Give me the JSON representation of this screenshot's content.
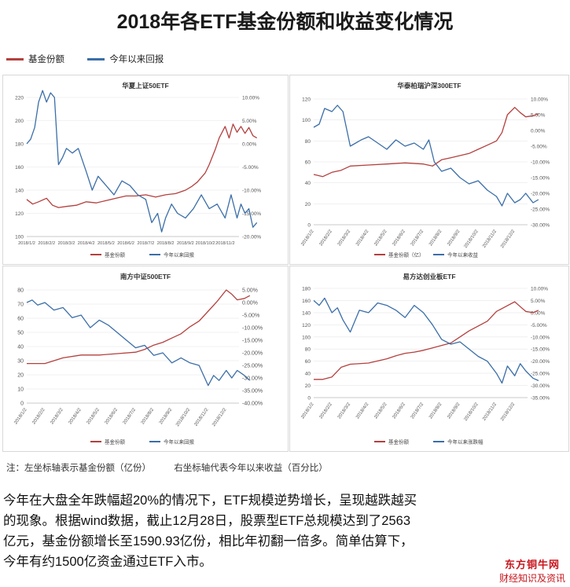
{
  "title": "2018年各ETF基金份额和收益变化情况",
  "legend": {
    "share_label": "基金份额",
    "return_label": "今年以来回报"
  },
  "colors": {
    "share": "#b3403e",
    "return": "#3b6ea8",
    "grid": "#e6e6e6",
    "axis": "#8a8a8a"
  },
  "note": {
    "left": "注：左坐标轴表示基金份额（亿份）",
    "right": "右坐标轴代表今年以来收益（百分比）"
  },
  "paragraph": [
    "今年在大盘全年跌幅超20%的情况下，ETF规模逆势增长，呈现越跌越买",
    "的现象。根据wind数据，截止12月28日，股票型ETF总规模达到了2563",
    "亿元，基金份额增长至1590.93亿份，相比年初翻一倍多。简单估算下，",
    "今年有约1500亿资金通过ETF入市。"
  ],
  "brand": {
    "name": "东方铜牛网",
    "tagline": "财经知识及资讯"
  },
  "chart_data": [
    {
      "type": "line",
      "title": "华夏上证50ETF",
      "left_ticks": [
        "220",
        "200",
        "180",
        "160",
        "140",
        "120",
        "100"
      ],
      "left_range": [
        100,
        220
      ],
      "right_ticks": [
        "10.00%",
        "5.00%",
        "0.00%",
        "-5.00%",
        "-10.00%",
        "-15.00%",
        "-20.00%"
      ],
      "right_range": [
        -20,
        10
      ],
      "x_ticks": [
        "2018/1/2",
        "2018/2/2",
        "2018/3/2",
        "2018/4/2",
        "2018/5/2",
        "2018/6/2",
        "2018/7/2",
        "2018/8/2",
        "2018/9/2",
        "2018/10/2",
        "2018/11/2"
      ],
      "x_rotated": false,
      "legend": [
        "基金份额",
        "今年以来回报"
      ],
      "series": [
        {
          "name": "基金份额",
          "axis": "left",
          "x": [
            0,
            0.3,
            0.6,
            1,
            1.3,
            1.6,
            2,
            2.5,
            3,
            3.5,
            4,
            4.5,
            5,
            5.5,
            6,
            6.5,
            7,
            7.5,
            8,
            8.3,
            8.6,
            9,
            9.2,
            9.5,
            9.7,
            10,
            10.2,
            10.4,
            10.6,
            10.8,
            11,
            11.2,
            11.4,
            11.6
          ],
          "values": [
            132,
            128,
            130,
            133,
            127,
            125,
            126,
            127,
            130,
            129,
            131,
            133,
            135,
            135,
            136,
            134,
            136,
            137,
            140,
            143,
            147,
            155,
            162,
            175,
            185,
            195,
            185,
            197,
            190,
            195,
            189,
            194,
            187,
            185
          ]
        },
        {
          "name": "今年以来回报",
          "axis": "right",
          "x": [
            0,
            0.2,
            0.4,
            0.6,
            0.8,
            1,
            1.2,
            1.4,
            1.6,
            1.8,
            2,
            2.3,
            2.6,
            3,
            3.3,
            3.6,
            4,
            4.4,
            4.8,
            5.2,
            5.6,
            6,
            6.3,
            6.6,
            6.8,
            7,
            7.3,
            7.6,
            8,
            8.4,
            8.8,
            9.2,
            9.6,
            10,
            10.3,
            10.6,
            10.8,
            11,
            11.2,
            11.4,
            11.6
          ],
          "values": [
            0,
            1,
            3.5,
            9,
            11.5,
            9,
            11,
            10,
            -4.5,
            -3,
            -1,
            -2,
            -1,
            -6,
            -10,
            -7,
            -9,
            -11,
            -8,
            -9,
            -11,
            -12,
            -17,
            -15,
            -19,
            -16,
            -13,
            -15,
            -16,
            -14,
            -11,
            -14,
            -13,
            -16,
            -11,
            -16,
            -13,
            -15,
            -14,
            -18,
            -17
          ]
        }
      ]
    },
    {
      "type": "line",
      "title": "华泰柏瑞沪深300ETF",
      "left_ticks": [
        "120",
        "100",
        "80",
        "60",
        "40",
        "20",
        "0"
      ],
      "left_range": [
        0,
        120
      ],
      "right_ticks": [
        "10.00%",
        "5.00%",
        "0.00%",
        "-5.00%",
        "-10.00%",
        "-15.00%",
        "-20.00%",
        "-25.00%",
        "-30.00%"
      ],
      "right_range": [
        -30,
        10
      ],
      "x_ticks": [
        "2018/1/2",
        "2018/2/2",
        "2018/3/2",
        "2018/4/2",
        "2018/5/2",
        "2018/6/2",
        "2018/7/2",
        "2018/8/2",
        "2018/9/2",
        "2018/10/2",
        "2018/11/2",
        "2018/12/2"
      ],
      "x_rotated": true,
      "legend": [
        "基金份额（亿）",
        "今年以来收益"
      ],
      "series": [
        {
          "name": "基金份额（亿）",
          "axis": "left",
          "x": [
            0,
            0.5,
            1,
            1.5,
            2,
            3,
            4,
            5,
            6,
            6.5,
            7,
            7.5,
            8,
            8.5,
            9,
            9.5,
            10,
            10.3,
            10.6,
            11,
            11.3,
            11.6,
            12,
            12.3
          ],
          "values": [
            48,
            46,
            50,
            52,
            56,
            57,
            58,
            59,
            58,
            56,
            62,
            64,
            66,
            68,
            72,
            76,
            80,
            88,
            105,
            112,
            107,
            103,
            104,
            106
          ]
        },
        {
          "name": "今年以来收益",
          "axis": "right",
          "x": [
            0,
            0.3,
            0.6,
            1,
            1.3,
            1.6,
            2,
            2.3,
            2.6,
            3,
            3.5,
            4,
            4.5,
            5,
            5.5,
            6,
            6.3,
            6.6,
            7,
            7.5,
            8,
            8.5,
            9,
            9.5,
            10,
            10.3,
            10.6,
            11,
            11.3,
            11.6,
            12,
            12.3
          ],
          "values": [
            1,
            2,
            7,
            6,
            8,
            6,
            -5,
            -4,
            -3,
            -2,
            -4,
            -6,
            -3,
            -5,
            -4,
            -6,
            -3,
            -10,
            -13,
            -12,
            -15,
            -17,
            -16,
            -19,
            -21,
            -24,
            -20,
            -23,
            -22,
            -20,
            -23,
            -22
          ]
        }
      ]
    },
    {
      "type": "line",
      "title": "南方中证500ETF",
      "left_ticks": [
        "80",
        "70",
        "60",
        "50",
        "40",
        "30",
        "20",
        "10",
        "0"
      ],
      "left_range": [
        0,
        80
      ],
      "right_ticks": [
        "5.00%",
        "0.00%",
        "-5.00%",
        "-10.00%",
        "-15.00%",
        "-20.00%",
        "-25.00%",
        "-30.00%",
        "-35.00%",
        "-40.00%"
      ],
      "right_range": [
        -40,
        5
      ],
      "x_ticks": [
        "2018/1/2",
        "2018/2/2",
        "2018/3/2",
        "2018/4/2",
        "2018/5/2",
        "2018/6/2",
        "2018/7/2",
        "2018/8/2",
        "2018/9/2",
        "2018/10/2",
        "2018/11/2",
        "2018/12/2"
      ],
      "x_rotated": true,
      "legend": [
        "基金份额",
        "今年以来回报"
      ],
      "series": [
        {
          "name": "基金份额",
          "axis": "left",
          "x": [
            0,
            1,
            2,
            3,
            4,
            5,
            6,
            6.5,
            7,
            7.5,
            8,
            8.5,
            9,
            9.5,
            10,
            10.5,
            11,
            11.3,
            11.6,
            12,
            12.3
          ],
          "values": [
            28,
            28,
            32,
            34,
            34,
            35,
            36,
            38,
            41,
            43,
            46,
            49,
            54,
            58,
            65,
            72,
            80,
            77,
            73,
            74,
            76
          ]
        },
        {
          "name": "今年以来回报",
          "axis": "right",
          "x": [
            0,
            0.3,
            0.6,
            1,
            1.5,
            2,
            2.5,
            3,
            3.5,
            4,
            4.5,
            5,
            5.5,
            6,
            6.5,
            7,
            7.5,
            8,
            8.5,
            9,
            9.5,
            10,
            10.3,
            10.6,
            11,
            11.3,
            11.6,
            12,
            12.3
          ],
          "values": [
            0,
            1,
            -1,
            0,
            -3,
            -2,
            -6,
            -5,
            -10,
            -7,
            -9,
            -12,
            -15,
            -18,
            -17,
            -21,
            -20,
            -24,
            -22,
            -24,
            -25,
            -33,
            -29,
            -31,
            -27,
            -30,
            -27,
            -29,
            -31
          ]
        }
      ]
    },
    {
      "type": "line",
      "title": "易方达创业板ETF",
      "left_ticks": [
        "180",
        "160",
        "140",
        "120",
        "100",
        "80",
        "60",
        "40",
        "20",
        "0"
      ],
      "left_range": [
        0,
        180
      ],
      "right_ticks": [
        "10.00%",
        "5.00%",
        "0.00%",
        "-5.00%",
        "-10.00%",
        "-15.00%",
        "-20.00%",
        "-25.00%",
        "-30.00%",
        "-35.00%"
      ],
      "right_range": [
        -35,
        10
      ],
      "x_ticks": [
        "2018/1/2",
        "2018/2/2",
        "2018/3/2",
        "2018/4/2",
        "2018/5/2",
        "2018/6/2",
        "2018/7/2",
        "2018/8/2",
        "2018/9/2",
        "2018/10/2",
        "2018/11/2",
        "2018/12/2"
      ],
      "x_rotated": true,
      "legend": [
        "基金份额",
        "今年以来涨跌幅"
      ],
      "series": [
        {
          "name": "基金份额",
          "axis": "left",
          "x": [
            0,
            0.5,
            1,
            1.5,
            2,
            3,
            4,
            4.5,
            5,
            5.5,
            6,
            6.5,
            7,
            7.5,
            8,
            8.5,
            9,
            9.5,
            10,
            10.5,
            11,
            11.3,
            11.6,
            12,
            12.3
          ],
          "values": [
            30,
            30,
            34,
            50,
            55,
            57,
            64,
            69,
            73,
            75,
            78,
            82,
            86,
            90,
            100,
            110,
            118,
            126,
            142,
            150,
            158,
            150,
            142,
            140,
            144
          ]
        },
        {
          "name": "今年以来涨跌幅",
          "axis": "right",
          "x": [
            0,
            0.3,
            0.6,
            1,
            1.3,
            1.6,
            2,
            2.5,
            3,
            3.5,
            4,
            4.5,
            5,
            5.5,
            6,
            6.5,
            7,
            7.5,
            8,
            8.5,
            9,
            9.5,
            10,
            10.3,
            10.6,
            11,
            11.3,
            11.6,
            12,
            12.3
          ],
          "values": [
            5,
            3,
            6,
            0,
            2,
            -3,
            -8,
            1,
            0,
            4,
            3,
            1,
            -2,
            3,
            0,
            -5,
            -11,
            -13,
            -12,
            -15,
            -18,
            -20,
            -25,
            -29,
            -22,
            -26,
            -21,
            -24,
            -27,
            -28
          ]
        }
      ]
    }
  ]
}
